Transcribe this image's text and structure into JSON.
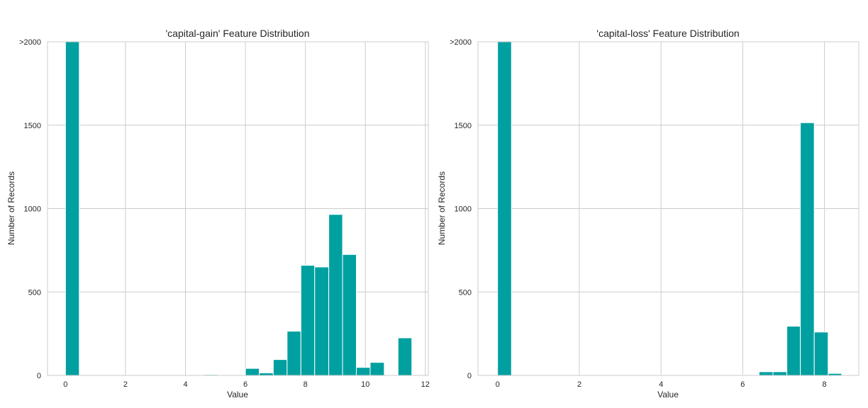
{
  "chart_data": [
    {
      "type": "bar",
      "title": "'capital-gain' Feature Distribution",
      "xlabel": "Value",
      "ylabel": "Number of Records",
      "xlim": [
        -0.6,
        12.1
      ],
      "ylim": [
        0,
        2000
      ],
      "xticks": [
        0,
        2,
        4,
        6,
        8,
        10,
        12
      ],
      "yticks": [
        0,
        500,
        1000,
        1500,
        2000
      ],
      "ytick_labels": [
        "0",
        "500",
        "1000",
        "1500",
        ">2000"
      ],
      "grid": true,
      "color": "#00a0a0",
      "bins": [
        {
          "x0": 0.0,
          "x1": 0.46,
          "value": 2000
        },
        {
          "x0": 4.62,
          "x1": 5.08,
          "value": 5
        },
        {
          "x0": 6.0,
          "x1": 6.46,
          "value": 42
        },
        {
          "x0": 6.46,
          "x1": 6.93,
          "value": 15
        },
        {
          "x0": 6.93,
          "x1": 7.39,
          "value": 95
        },
        {
          "x0": 7.39,
          "x1": 7.85,
          "value": 265
        },
        {
          "x0": 7.85,
          "x1": 8.31,
          "value": 660
        },
        {
          "x0": 8.31,
          "x1": 8.78,
          "value": 650
        },
        {
          "x0": 8.78,
          "x1": 9.24,
          "value": 965
        },
        {
          "x0": 9.24,
          "x1": 9.7,
          "value": 725
        },
        {
          "x0": 9.7,
          "x1": 10.16,
          "value": 48
        },
        {
          "x0": 10.16,
          "x1": 10.63,
          "value": 78
        },
        {
          "x0": 11.09,
          "x1": 11.55,
          "value": 225
        }
      ]
    },
    {
      "type": "bar",
      "title": "'capital-loss' Feature Distribution",
      "xlabel": "Value",
      "ylabel": "Number of Records",
      "xlim": [
        -0.48,
        8.84
      ],
      "ylim": [
        0,
        2000
      ],
      "xticks": [
        0,
        2,
        4,
        6,
        8
      ],
      "yticks": [
        0,
        500,
        1000,
        1500,
        2000
      ],
      "ytick_labels": [
        "0",
        "500",
        "1000",
        "1500",
        ">2000"
      ],
      "grid": true,
      "color": "#00a0a0",
      "bins": [
        {
          "x0": 0.0,
          "x1": 0.34,
          "value": 2000
        },
        {
          "x0": 5.39,
          "x1": 5.73,
          "value": 3
        },
        {
          "x0": 5.73,
          "x1": 6.06,
          "value": 3
        },
        {
          "x0": 6.4,
          "x1": 6.74,
          "value": 22
        },
        {
          "x0": 6.74,
          "x1": 7.08,
          "value": 22
        },
        {
          "x0": 7.08,
          "x1": 7.41,
          "value": 295
        },
        {
          "x0": 7.41,
          "x1": 7.75,
          "value": 1515
        },
        {
          "x0": 7.75,
          "x1": 8.09,
          "value": 260
        },
        {
          "x0": 8.09,
          "x1": 8.42,
          "value": 12
        }
      ]
    }
  ]
}
